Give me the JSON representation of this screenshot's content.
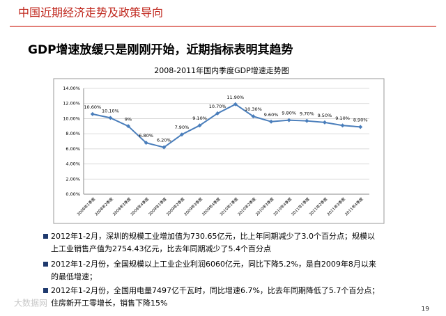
{
  "header": {
    "title": "中国近期经济走势及政策导向",
    "subtitle": "GDP增速放缓只是刚刚开始，近期指标表明其趋势"
  },
  "chart_data": {
    "type": "line",
    "title": "2008-2011年国内季度GDP增速走势图",
    "categories": [
      "2008年1季度",
      "2008年2季度",
      "2008年3季度",
      "2008年4季度",
      "2009年1季度",
      "2009年2季度",
      "2009年3季度",
      "2009年4季度",
      "2010年1季度",
      "2010年2季度",
      "2010年3季度",
      "2010年4季度",
      "2011年1季度",
      "2011年2季度",
      "2011年3季度",
      "2011年4季度"
    ],
    "series": [
      {
        "name": "GDP增速",
        "color": "#4a7ebb",
        "values": [
          10.6,
          10.1,
          9,
          6.8,
          6.2,
          7.9,
          9.1,
          10.7,
          11.9,
          10.3,
          9.6,
          9.8,
          9.7,
          9.5,
          9.1,
          8.9
        ],
        "value_labels": [
          "10.60%",
          "10.10%",
          "9%",
          "6.80%",
          "6.20%",
          "7.90%",
          "9.10%",
          "10.70%",
          "11.90%",
          "10.30%",
          "9.60%",
          "9.80%",
          "9.70%",
          "9.50%",
          "9.10%",
          "8.90%"
        ]
      }
    ],
    "ylim": [
      0,
      14
    ],
    "yticks": [
      {
        "value": 0,
        "label": "0.00%"
      },
      {
        "value": 2,
        "label": "2.00%"
      },
      {
        "value": 4,
        "label": "4.00%"
      },
      {
        "value": 6,
        "label": "6.00%"
      },
      {
        "value": 8,
        "label": "8.00%"
      },
      {
        "value": 10,
        "label": "10.00%"
      },
      {
        "value": 12,
        "label": "12.00%"
      },
      {
        "value": 14,
        "label": "14.00%"
      }
    ],
    "grid": true
  },
  "bullets": [
    [
      "2012年1-2月，深圳的规模工业增加值为730.65亿元，比上年同期减少了3.0个百分点；规模以",
      "上工业销售产值为2754.43亿元，比去年同期减少了5.4个百分点"
    ],
    [
      "2012年1-2月份，全国规模以上工业企业利润6060亿元，同比下降5.2%，是自2009年8月以来",
      "的最低增速；"
    ],
    [
      "2012年1-2月份，全国用电量7497亿千瓦时，同比增速6.7%，比去年同期降低了5.7个百分点；",
      "住房新开工零增长，销售下降15%"
    ]
  ],
  "footer": {
    "watermark": "大数据网",
    "page": "19"
  }
}
